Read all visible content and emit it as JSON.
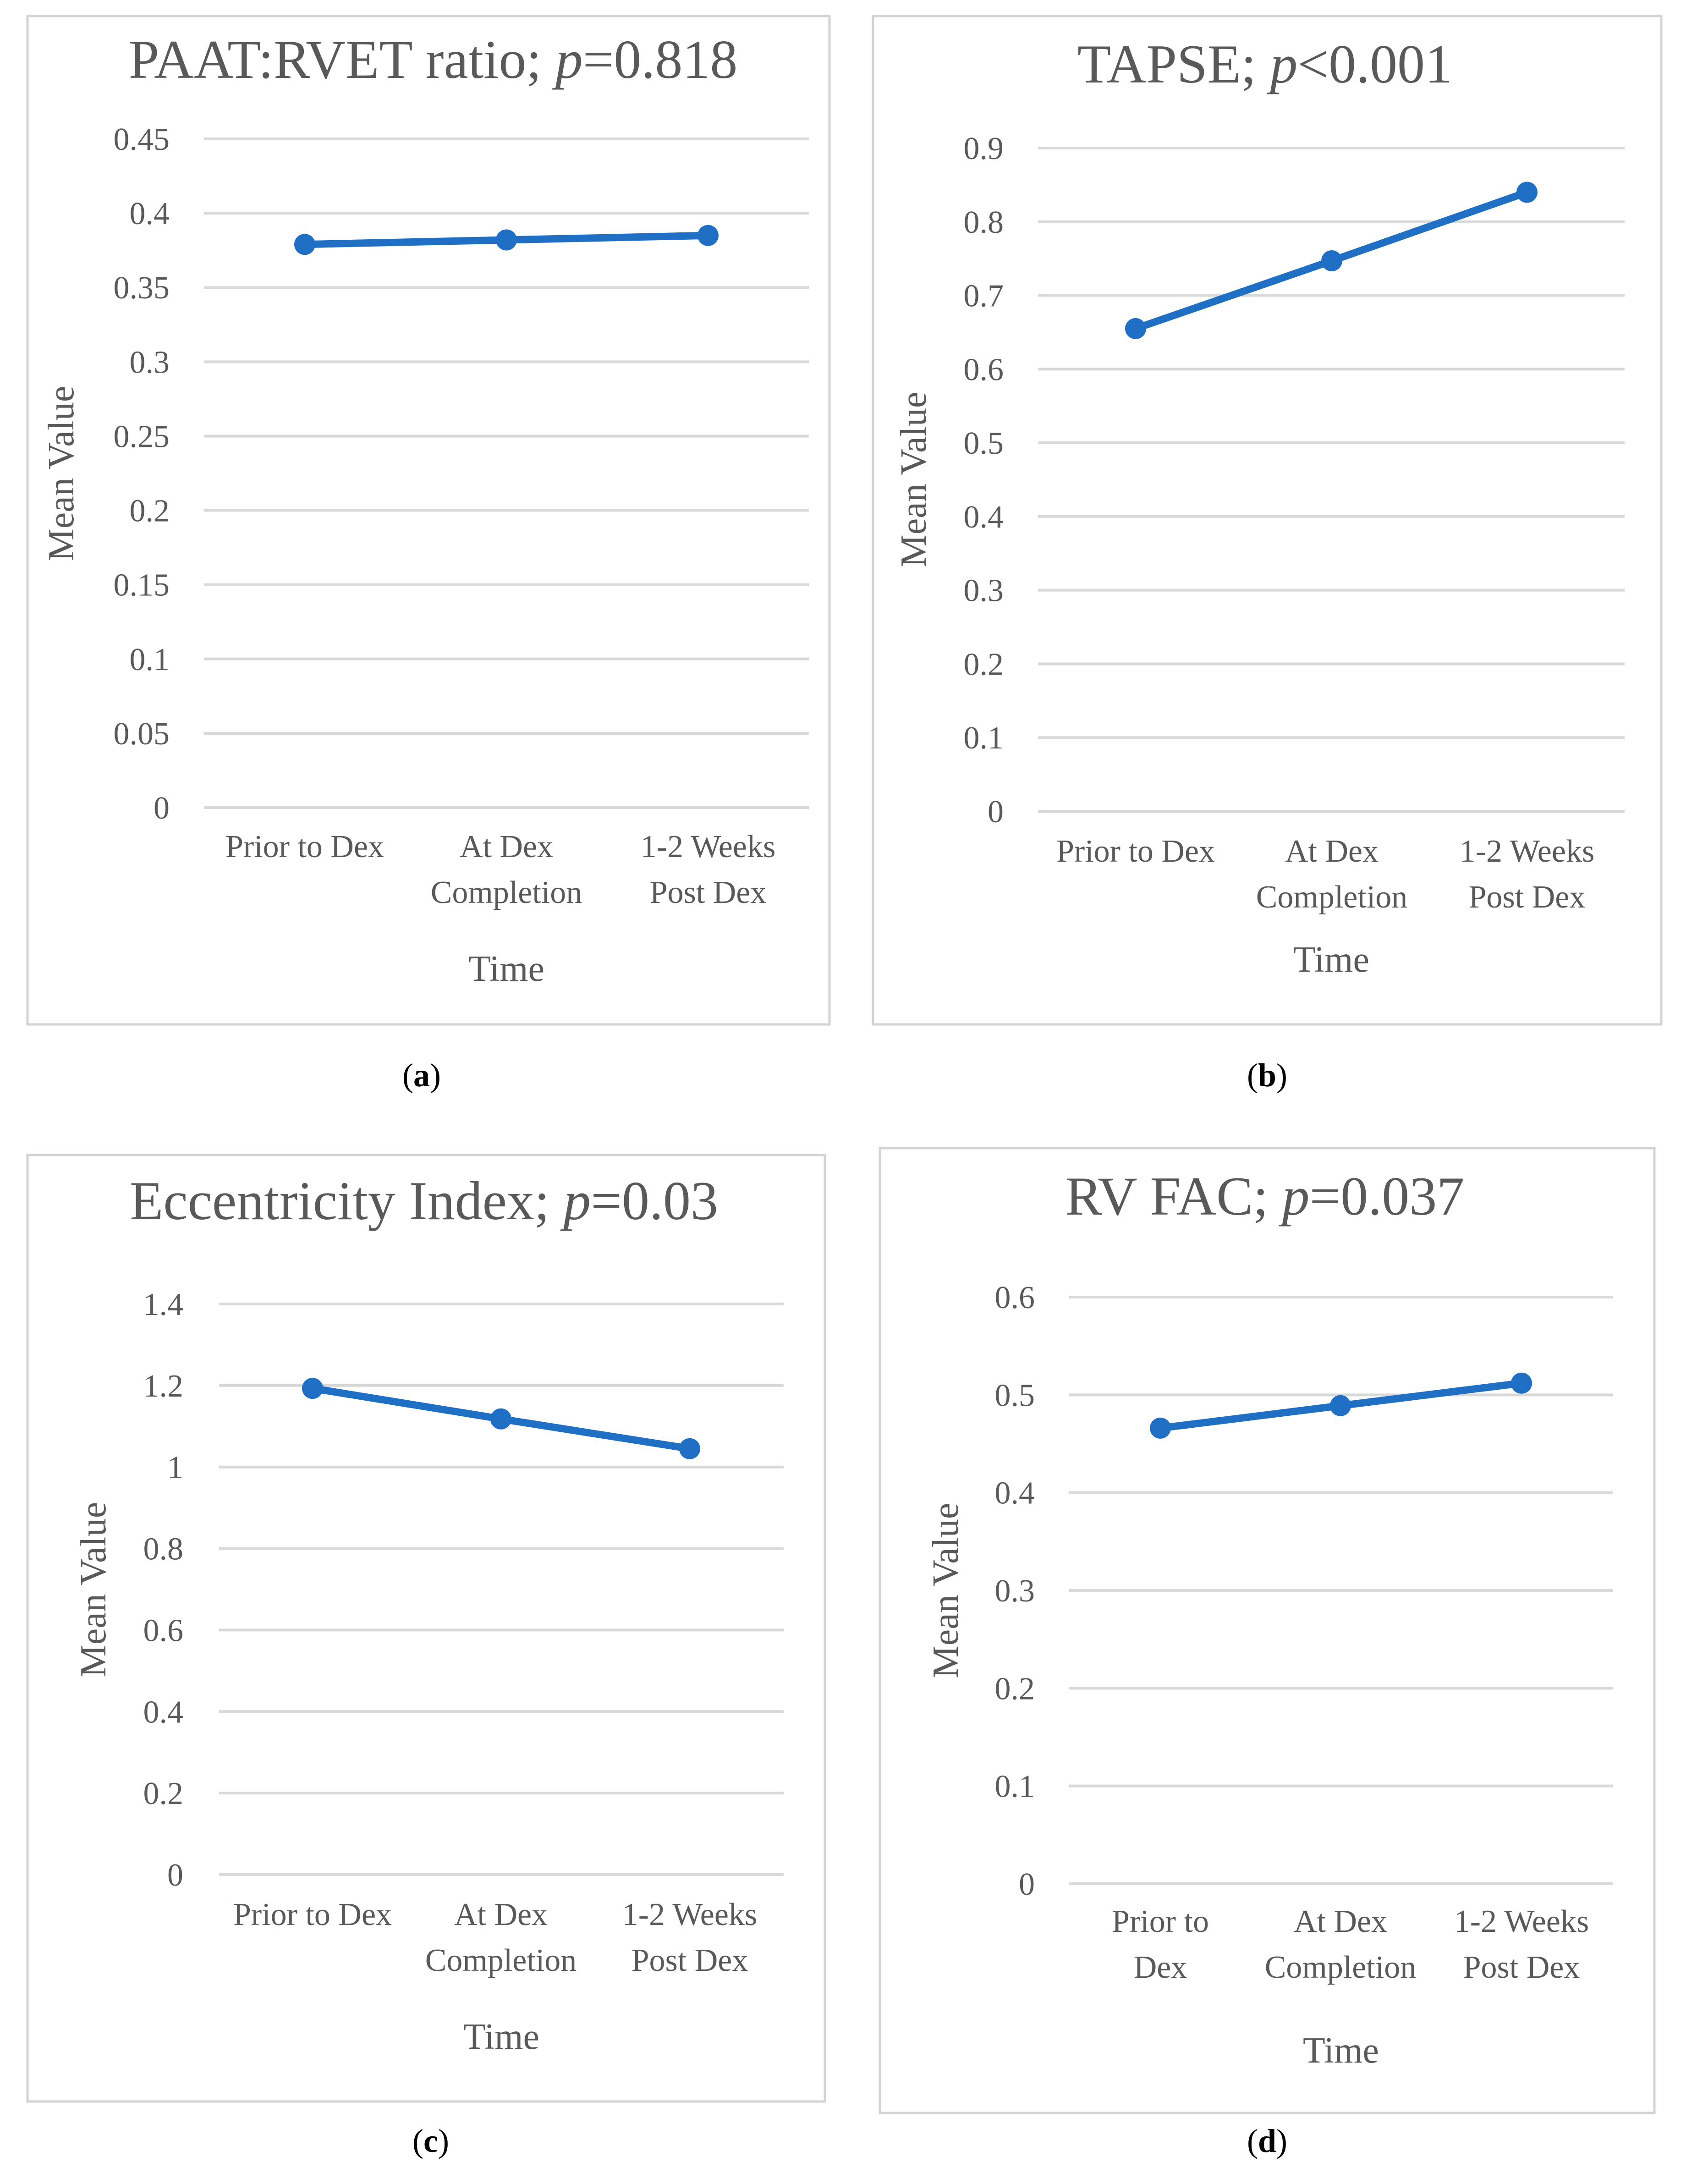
{
  "colors": {
    "series": "#1f6fc5",
    "text": "#595959",
    "grid": "#d9d9d9",
    "frame": "#d3d3d3"
  },
  "chart_data": [
    {
      "type": "line",
      "panel_label": "a",
      "title": "PAAT:RVET ratio; p=0.818",
      "title_parts": {
        "before": "PAAT:RVET ratio; ",
        "italic": "p",
        "after": "=0.818"
      },
      "xlabel": "Time",
      "ylabel": "Mean Value",
      "categories": [
        [
          "Prior to Dex"
        ],
        [
          "At Dex",
          "Completion"
        ],
        [
          "1-2 Weeks",
          "Post Dex"
        ]
      ],
      "series": [
        {
          "values": [
            0.379,
            0.382,
            0.385
          ]
        }
      ],
      "ylim": [
        0,
        0.45
      ],
      "yticks": [
        "0",
        "0.05",
        "0.1",
        "0.15",
        "0.2",
        "0.25",
        "0.3",
        "0.35",
        "0.4",
        "0.45"
      ],
      "grid": true,
      "legend": false
    },
    {
      "type": "line",
      "panel_label": "b",
      "title": "TAPSE; p<0.001",
      "title_parts": {
        "before": "TAPSE; ",
        "italic": "p",
        "after": "<0.001"
      },
      "xlabel": "Time",
      "ylabel": "Mean Value",
      "categories": [
        [
          "Prior to Dex"
        ],
        [
          "At Dex",
          "Completion"
        ],
        [
          "1-2 Weeks",
          "Post Dex"
        ]
      ],
      "series": [
        {
          "values": [
            0.655,
            0.747,
            0.84
          ]
        }
      ],
      "ylim": [
        0,
        0.9
      ],
      "yticks": [
        "0",
        "0.1",
        "0.2",
        "0.3",
        "0.4",
        "0.5",
        "0.6",
        "0.7",
        "0.8",
        "0.9"
      ],
      "grid": true,
      "legend": false
    },
    {
      "type": "line",
      "panel_label": "c",
      "title": "Eccentricity Index; p=0.03",
      "title_parts": {
        "before": "Eccentricity Index; ",
        "italic": "p",
        "after": "=0.03"
      },
      "xlabel": "Time",
      "ylabel": "Mean Value",
      "categories": [
        [
          "Prior to Dex"
        ],
        [
          "At Dex",
          "Completion"
        ],
        [
          "1-2 Weeks",
          "Post Dex"
        ]
      ],
      "series": [
        {
          "values": [
            1.193,
            1.118,
            1.045
          ]
        }
      ],
      "ylim": [
        0,
        1.4
      ],
      "yticks": [
        "0",
        "0.2",
        "0.4",
        "0.6",
        "0.8",
        "1",
        "1.2",
        "1.4"
      ],
      "grid": true,
      "legend": false
    },
    {
      "type": "line",
      "panel_label": "d",
      "title": "RV FAC; p=0.037",
      "title_parts": {
        "before": "RV FAC; ",
        "italic": "p",
        "after": "=0.037"
      },
      "xlabel": "Time",
      "ylabel": "Mean Value",
      "categories": [
        [
          "Prior to",
          "Dex"
        ],
        [
          "At Dex",
          "Completion"
        ],
        [
          "1-2 Weeks",
          "Post Dex"
        ]
      ],
      "series": [
        {
          "values": [
            0.466,
            0.489,
            0.512
          ]
        }
      ],
      "ylim": [
        0,
        0.6
      ],
      "yticks": [
        "0",
        "0.1",
        "0.2",
        "0.3",
        "0.4",
        "0.5",
        "0.6"
      ],
      "grid": true,
      "legend": false
    }
  ]
}
